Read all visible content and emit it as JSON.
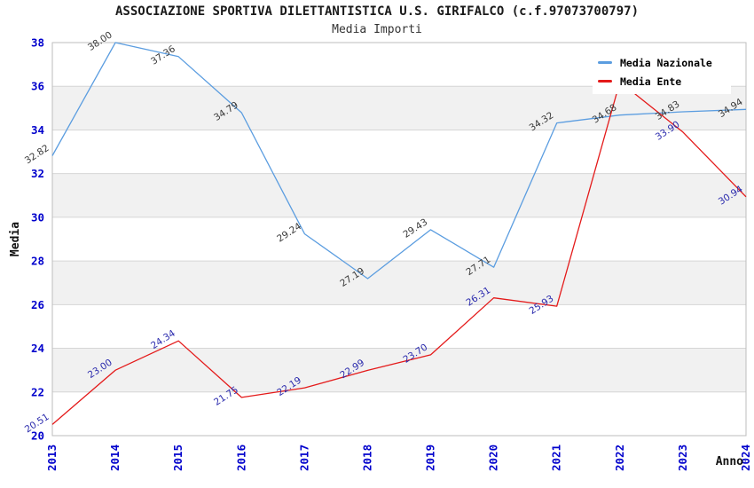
{
  "title": "ASSOCIAZIONE SPORTIVA DILETTANTISTICA U.S. GIRIFALCO (c.f.97073700797)",
  "subtitle": "Media Importi",
  "legend": {
    "items": [
      {
        "label": "Media Nazionale",
        "color": "#5b9de0"
      },
      {
        "label": "Media Ente",
        "color": "#e41a1a"
      }
    ]
  },
  "chart_data": {
    "type": "line",
    "title": "ASSOCIAZIONE SPORTIVA DILETTANTISTICA U.S. GIRIFALCO (c.f.97073700797)",
    "subtitle": "Media Importi",
    "xlabel": "Anno",
    "ylabel": "Media",
    "ylim": [
      20,
      38
    ],
    "ytick_step": 2,
    "ytick_labels": [
      "20",
      "22",
      "24",
      "26",
      "28",
      "30",
      "32",
      "34",
      "36",
      "38"
    ],
    "x_categories": [
      "2013",
      "2014",
      "2015",
      "2016",
      "2017",
      "2018",
      "2019",
      "2020",
      "2021",
      "2022",
      "2023",
      "2024"
    ],
    "series": [
      {
        "name": "Media Nazionale",
        "color": "#5b9de0",
        "label_color": "#3a3a3a",
        "values": [
          32.82,
          38.0,
          37.36,
          34.79,
          29.24,
          27.19,
          29.43,
          27.71,
          34.32,
          34.68,
          34.83,
          34.94
        ],
        "labels": [
          "32.82",
          "38.00",
          "37.36",
          "34.79",
          "29.24",
          "27.19",
          "29.43",
          "27.71",
          "34.32",
          "34.68",
          "34.83",
          "34.94"
        ]
      },
      {
        "name": "Media Ente",
        "color": "#e41a1a",
        "label_color": "#2a2aad",
        "values": [
          20.51,
          23.0,
          24.34,
          21.75,
          22.19,
          22.99,
          23.7,
          26.31,
          25.93,
          36.2,
          33.9,
          30.94
        ],
        "labels": [
          "20.51",
          "23.00",
          "24.34",
          "21.75",
          "22.19",
          "22.99",
          "23.70",
          "26.31",
          "25.93",
          null,
          "33.90",
          "30.94"
        ]
      }
    ],
    "grid": {
      "band_colors": [
        "#ffffff",
        "#f1f1f1"
      ],
      "line_color": "#d6d6d6",
      "border_color": "#bdbdbd"
    },
    "tick_color": "#0000cc",
    "axis_title_color": "#111111",
    "legend_position": "top-right"
  }
}
